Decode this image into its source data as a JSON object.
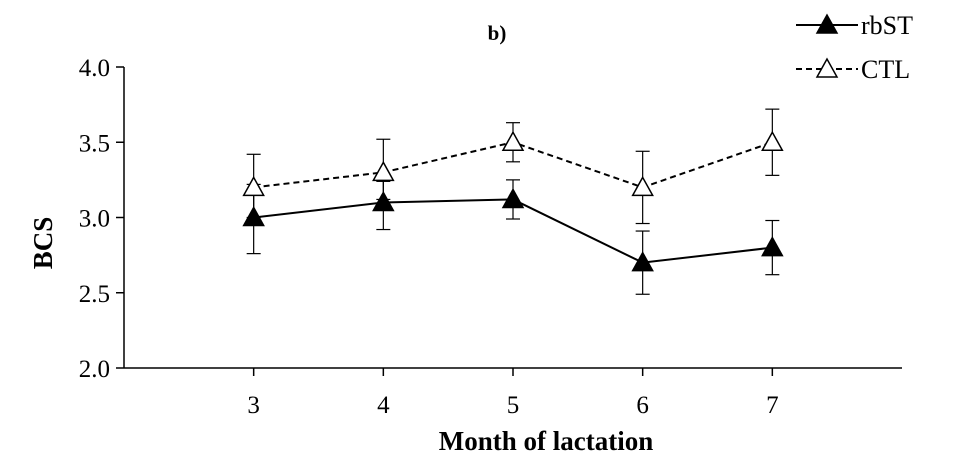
{
  "chart_data": {
    "type": "line",
    "panel_label": "b)",
    "title": "",
    "xlabel": "Month of lactation",
    "ylabel": "BCS",
    "categories": [
      3,
      4,
      5,
      6,
      7
    ],
    "xlim": [
      2,
      8
    ],
    "ylim": [
      2.0,
      4.0
    ],
    "yticks": [
      2.0,
      2.5,
      3.0,
      3.5,
      4.0
    ],
    "ytick_labels": [
      "2.0",
      "2.5",
      "3.0",
      "3.5",
      "4.0"
    ],
    "xtick_labels": [
      "3",
      "4",
      "5",
      "6",
      "7"
    ],
    "grid": false,
    "legend_position": "top-right",
    "series": [
      {
        "name": "rbST",
        "line_style": "solid",
        "marker": "filled-triangle",
        "color": "#000000",
        "values": [
          3.0,
          3.1,
          3.12,
          2.7,
          2.8
        ],
        "error_low": [
          2.76,
          2.92,
          2.99,
          2.49,
          2.62
        ],
        "error_high": [
          3.22,
          3.24,
          3.25,
          2.91,
          2.98
        ]
      },
      {
        "name": "CTL",
        "line_style": "dashed",
        "marker": "open-triangle",
        "color": "#000000",
        "values": [
          3.2,
          3.3,
          3.5,
          3.2,
          3.5
        ],
        "error_low": [
          3.0,
          3.12,
          3.37,
          2.96,
          3.28
        ],
        "error_high": [
          3.42,
          3.52,
          3.63,
          3.44,
          3.72
        ]
      }
    ]
  }
}
